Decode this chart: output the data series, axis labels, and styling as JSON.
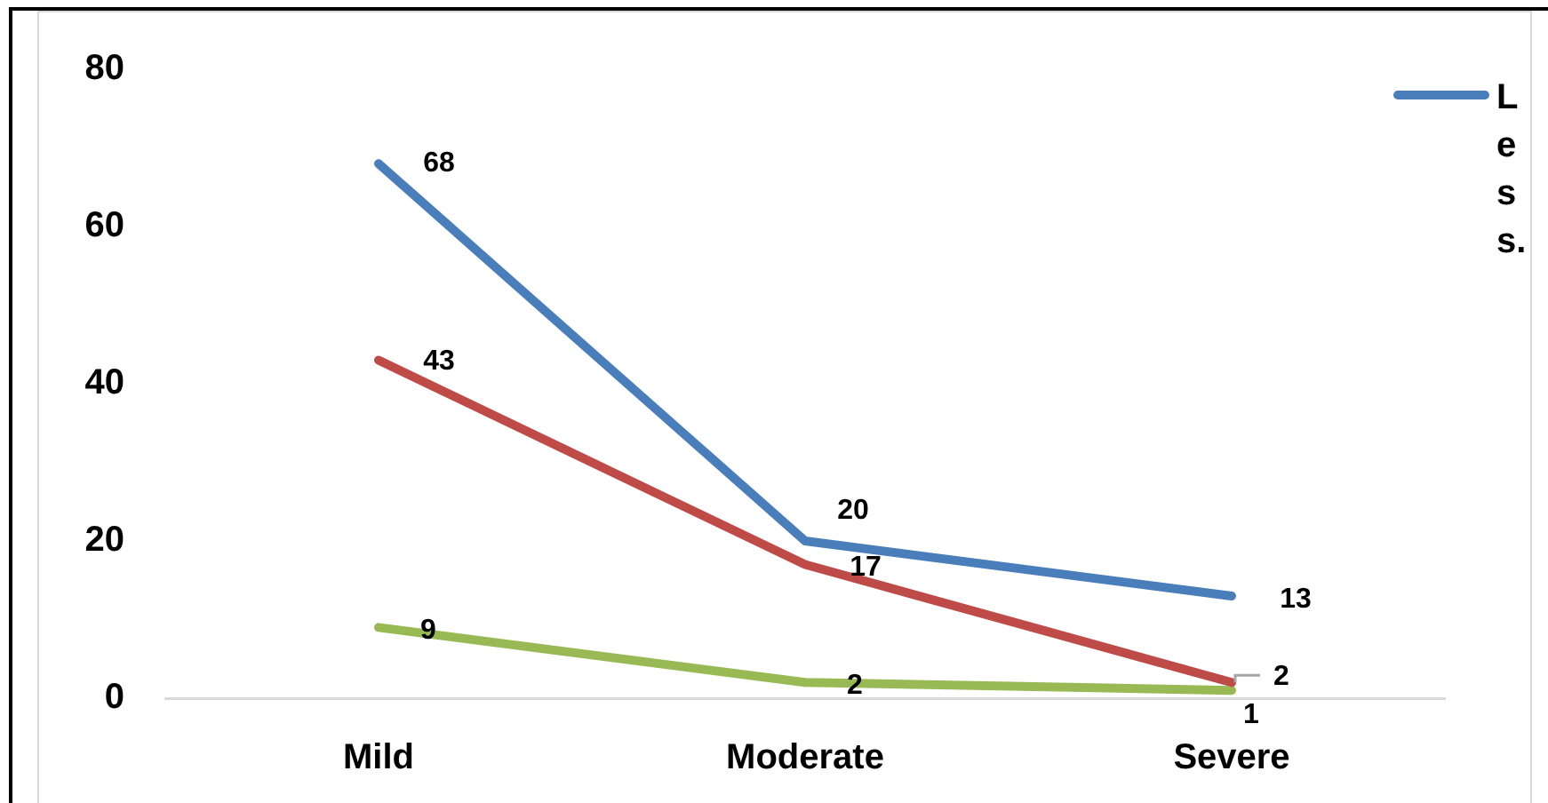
{
  "chart_data": {
    "type": "line",
    "categories": [
      "Mild",
      "Moderate",
      "Severe"
    ],
    "series": [
      {
        "name": "Less.",
        "color": "#4a7ebb",
        "values": [
          68,
          20,
          13
        ]
      },
      {
        "color": "#be4b48",
        "values": [
          43,
          17,
          2
        ]
      },
      {
        "color": "#98b954",
        "values": [
          9,
          2,
          1
        ]
      }
    ],
    "ylim": [
      0,
      80
    ],
    "yticks": [
      0,
      20,
      40,
      60,
      80
    ],
    "grid": false,
    "legend": "top right",
    "data_labels": true,
    "marker": "none",
    "line_style": "solid"
  }
}
